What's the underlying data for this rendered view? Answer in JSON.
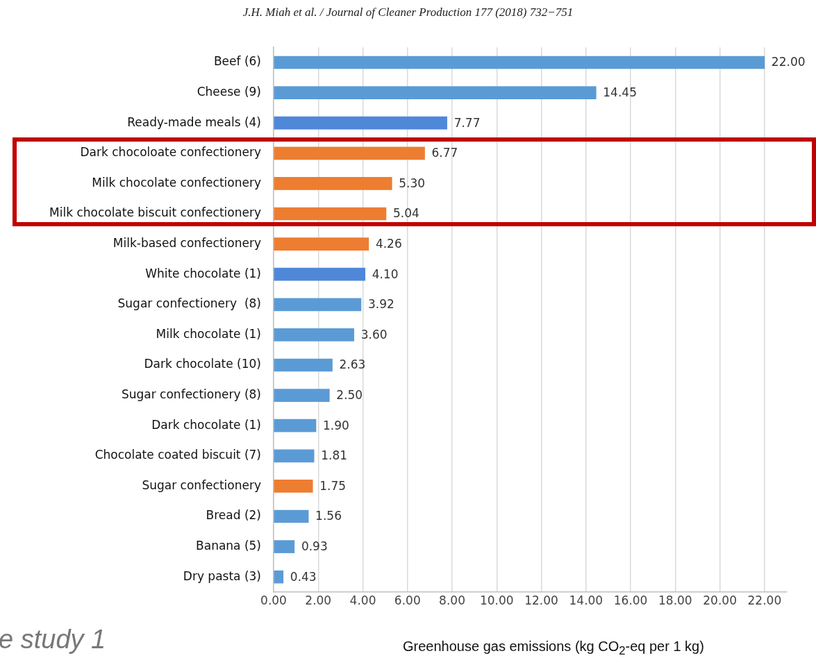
{
  "chart_data": {
    "type": "bar",
    "orientation": "horizontal",
    "categories": [
      "Beef (6)",
      "Cheese (9)",
      "Ready-made meals (4)",
      "Dark chocoloate confectionery",
      "Milk chocolate confectionery",
      "Milk chocolate biscuit confectionery",
      "Milk-based confectionery",
      "White chocolate (1)",
      "Sugar confectionery  (8)",
      "Milk chocolate (1)",
      "Dark chocolate (10)",
      "Sugar confectionery (8)",
      "Dark chocolate (1)",
      "Chocolate coated biscuit (7)",
      "Sugar confectionery",
      "Bread (2)",
      "Banana (5)",
      "Dry pasta (3)"
    ],
    "values": [
      22,
      14.45,
      7.77,
      6.77,
      5.3,
      5.04,
      4.26,
      4.1,
      3.92,
      3.6,
      2.63,
      2.5,
      1.9,
      1.81,
      1.75,
      1.56,
      0.93,
      0.43
    ],
    "value_labels": [
      "22.00",
      "14.45",
      "7.77",
      "6.77",
      "5.30",
      "5.04",
      "4.26",
      "4.10",
      "3.92",
      "3.60",
      "2.63",
      "2.50",
      "1.90",
      "1.81",
      "1.75",
      "1.56",
      "0.93",
      "0.43"
    ],
    "colors": [
      "#5b9bd5",
      "#5b9bd5",
      "#4f88d8",
      "#ed7d31",
      "#ed7d31",
      "#ed7d31",
      "#ed7d31",
      "#4f88d8",
      "#5b9bd5",
      "#5b9bd5",
      "#5b9bd5",
      "#5b9bd5",
      "#5b9bd5",
      "#5b9bd5",
      "#ed7d31",
      "#5b9bd5",
      "#5b9bd5",
      "#5b9bd5"
    ],
    "xlabel": "Greenhouse gas emissions (kg CO$_{2}$-eq per 1 kg)",
    "xlim": [
      0,
      23
    ],
    "xticks": [
      {
        "value": 0,
        "label": "0.00"
      },
      {
        "value": 2,
        "label": "2.00"
      },
      {
        "value": 4,
        "label": "4.00"
      },
      {
        "value": 6,
        "label": "6.00"
      },
      {
        "value": 8,
        "label": "8.00"
      },
      {
        "value": 10,
        "label": "10.00"
      },
      {
        "value": 12,
        "label": "12.00"
      },
      {
        "value": 14,
        "label": "14.00"
      },
      {
        "value": 16,
        "label": "16.00"
      },
      {
        "value": 18,
        "label": "18.00"
      },
      {
        "value": 20,
        "label": "20.00"
      },
      {
        "value": 22,
        "label": "22.00"
      }
    ],
    "grid": "x",
    "legend": false,
    "annotations": [
      "J.H. Miah et al. / Journal of Cleaner Production 177 (2018) 732−751",
      "e study 1"
    ]
  }
}
